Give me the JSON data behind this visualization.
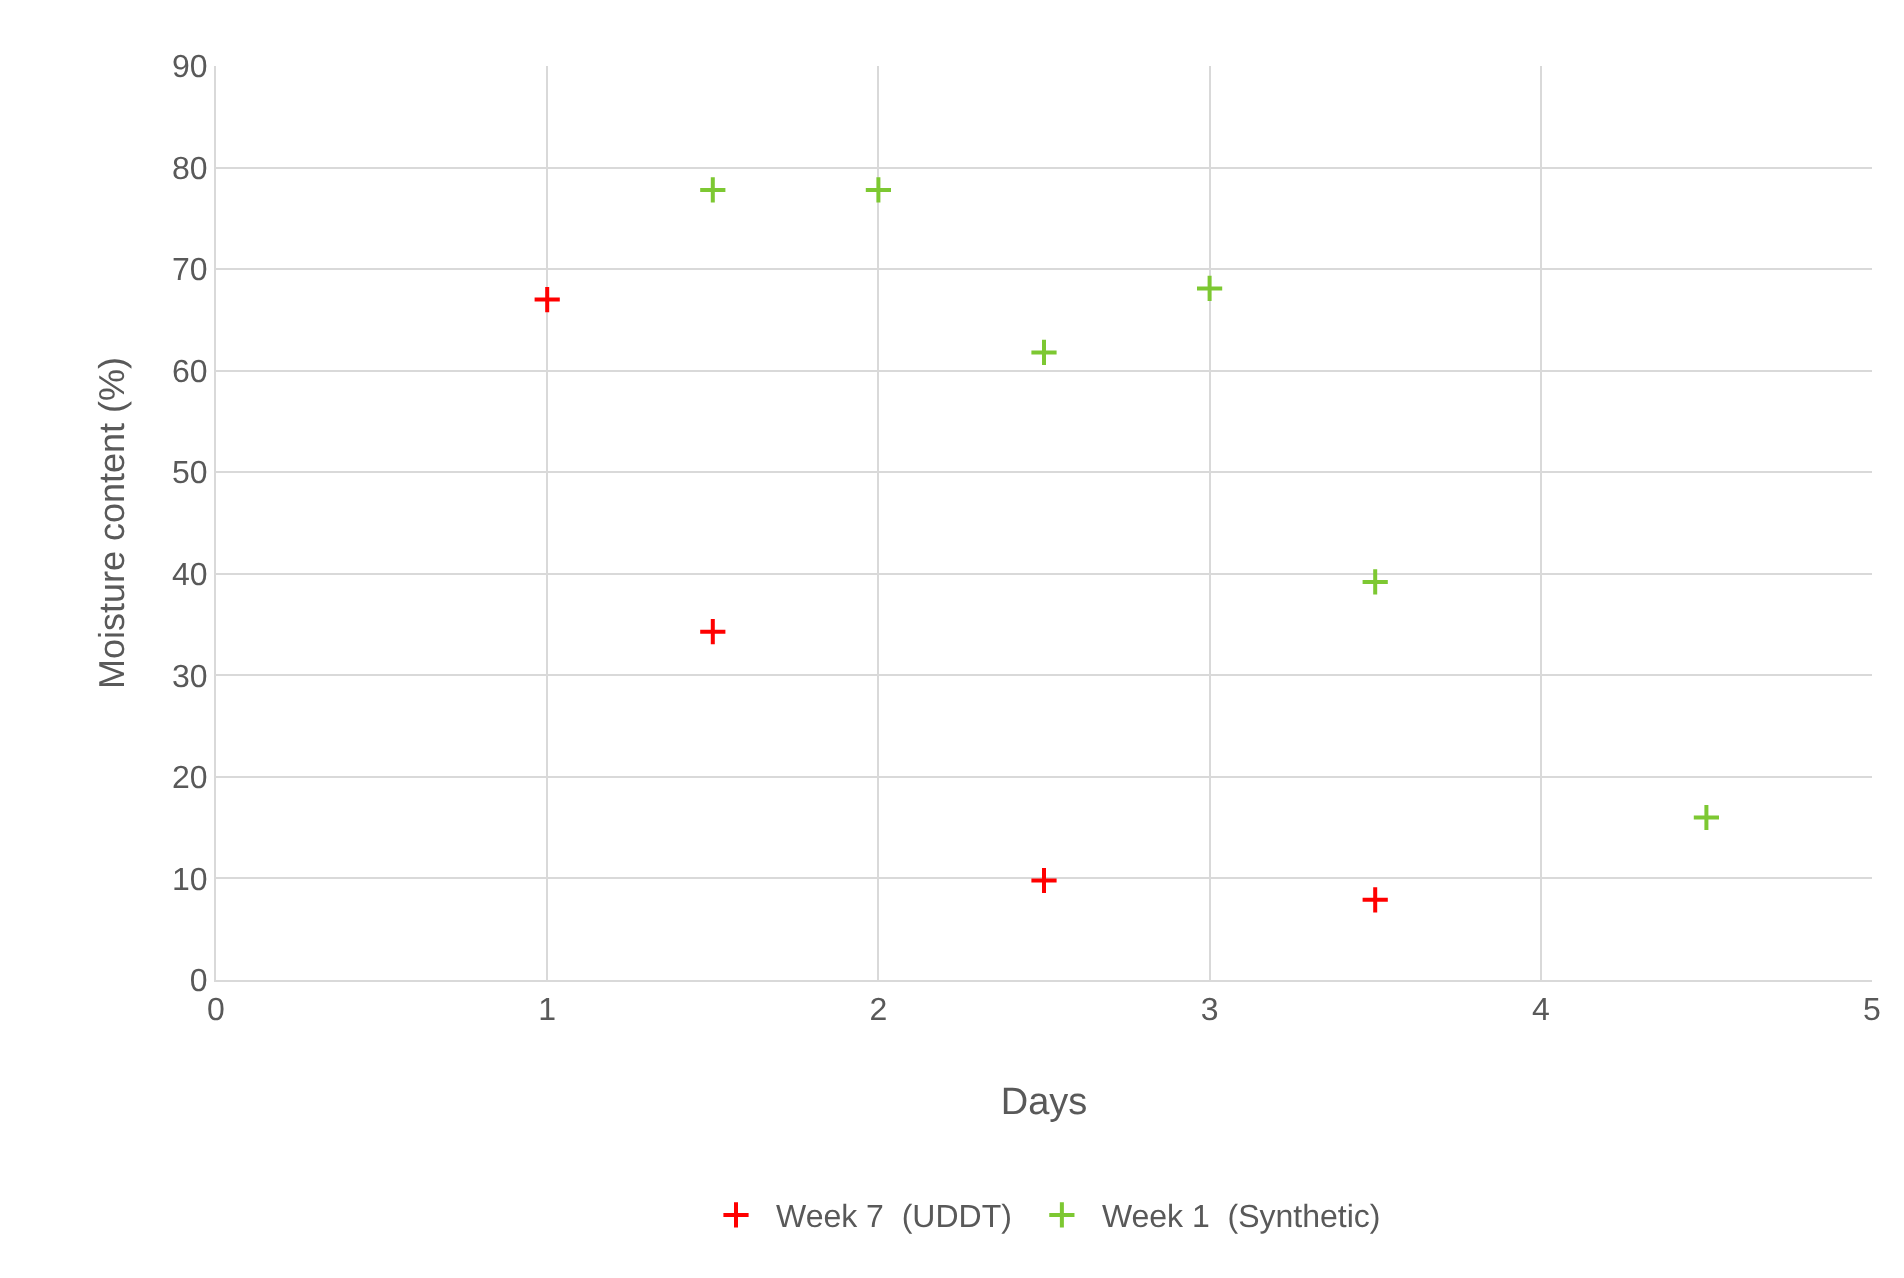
{
  "chart_data": {
    "type": "scatter",
    "xlabel": "Days",
    "ylabel": "Moisture content (%)",
    "xlim": [
      0,
      5
    ],
    "xticks": [
      0,
      1,
      2,
      3,
      4,
      5
    ],
    "ylim": [
      0,
      90
    ],
    "yticks": [
      0,
      10,
      20,
      30,
      40,
      50,
      60,
      70,
      80,
      90
    ],
    "grid": true,
    "legend": "bottom",
    "series": [
      {
        "name": "Week 7  (UDDT)",
        "color": "#ff0000",
        "marker": "cross",
        "x": [
          1,
          1.5,
          2.5,
          3.5
        ],
        "values": [
          67,
          34.3,
          9.8,
          7.9
        ]
      },
      {
        "name": "Week 1  (Synthetic)",
        "color": "#7dc832",
        "marker": "cross",
        "x": [
          1.5,
          2,
          2.5,
          3,
          3.5,
          4.5
        ],
        "values": [
          77.8,
          77.8,
          61.8,
          68.1,
          39.2,
          16
        ]
      }
    ]
  }
}
